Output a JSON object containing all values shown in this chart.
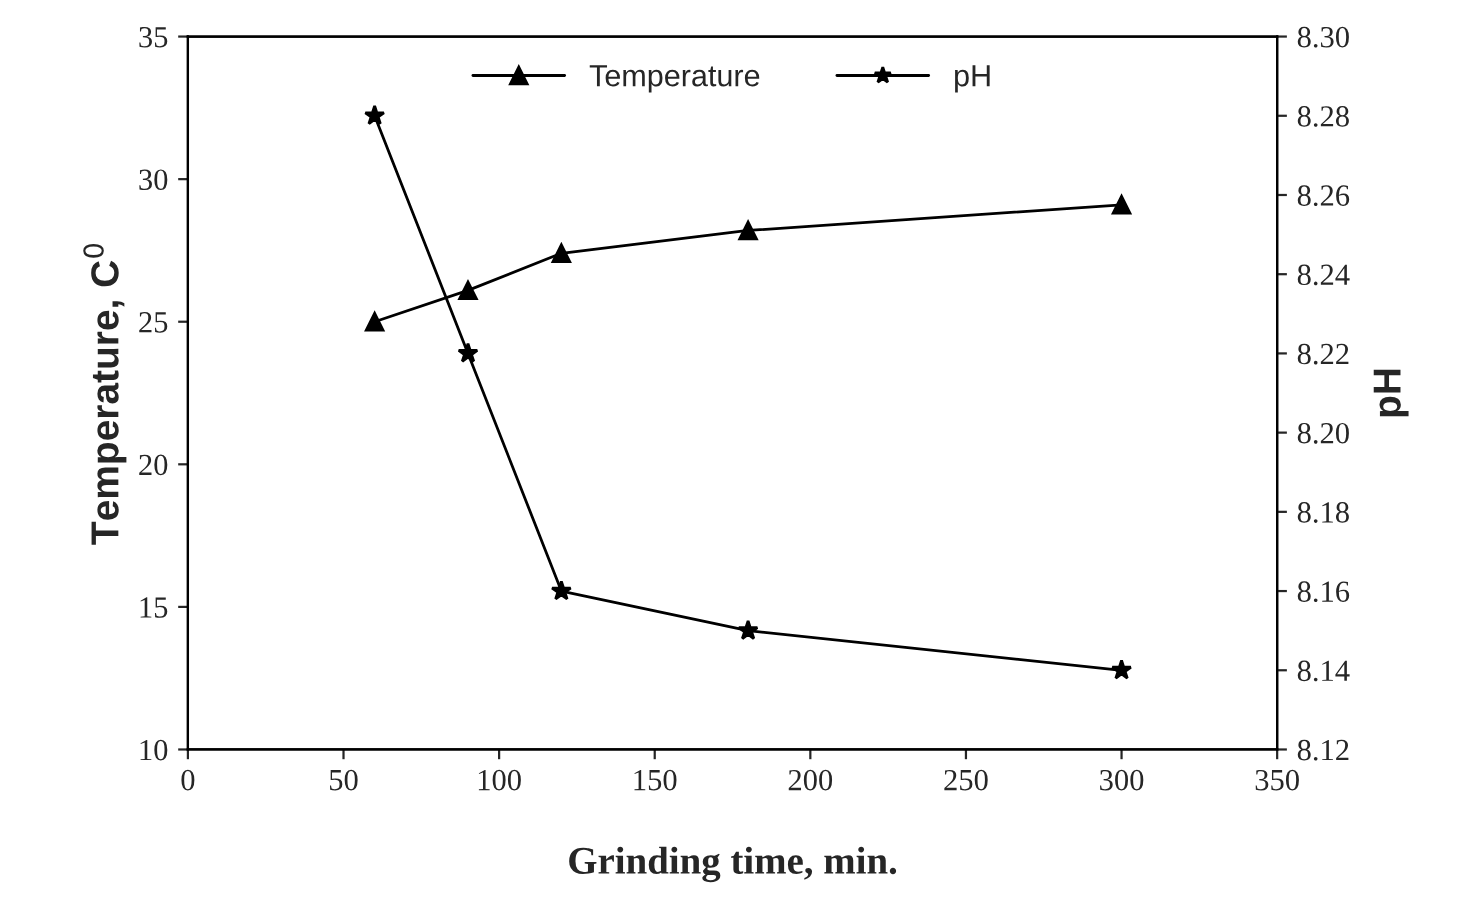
{
  "chart_data": {
    "type": "line",
    "xlabel": "Grinding time, min.",
    "ylabel": "Temperature, C$^{0}$",
    "y2label": "pH",
    "series": [
      {
        "name": "Temperature",
        "color": "#000000",
        "marker": "triangle",
        "x": [
          60,
          90,
          120,
          180,
          300
        ],
        "values": [
          25.0,
          26.1,
          27.4,
          28.2,
          29.1
        ]
      },
      {
        "name": "pH",
        "color": "#000000",
        "marker": "star",
        "axis": "y2",
        "x": [
          60,
          90,
          120,
          180,
          300
        ],
        "values": [
          8.28,
          8.22,
          8.16,
          8.15,
          8.14
        ]
      }
    ],
    "xlim": [
      0,
      350
    ],
    "xticks": [
      0,
      50,
      100,
      150,
      200,
      250,
      300,
      350
    ],
    "ylim": [
      10,
      35
    ],
    "yticks": [
      10,
      15,
      20,
      25,
      30,
      35
    ],
    "y2lim": [
      8.12,
      8.3
    ],
    "y2ticks": [
      {
        "value": 8.12,
        "label": "8.12"
      },
      {
        "value": 8.14,
        "label": "8.14"
      },
      {
        "value": 8.16,
        "label": "8.16"
      },
      {
        "value": 8.18,
        "label": "8.18"
      },
      {
        "value": 8.2,
        "label": "8.20"
      },
      {
        "value": 8.22,
        "label": "8.22"
      },
      {
        "value": 8.24,
        "label": "8.24"
      },
      {
        "value": 8.26,
        "label": "8.26"
      },
      {
        "value": 8.28,
        "label": "8.28"
      },
      {
        "value": 8.3,
        "label": "8.30"
      }
    ],
    "legend": "top",
    "grid": false,
    "line_style": "solid"
  }
}
